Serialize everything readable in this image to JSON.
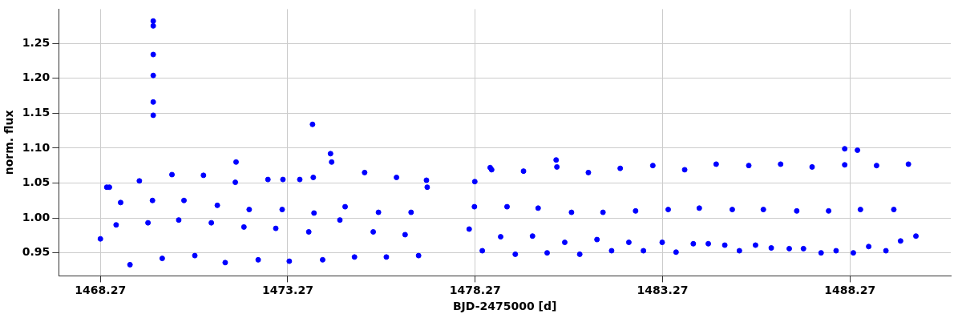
{
  "chart_data": {
    "type": "scatter",
    "xlabel": "BJD-2475000 [d]",
    "ylabel": "norm. flux",
    "marker": "circle",
    "grid": true,
    "xlim": [
      1467.16,
      1490.96
    ],
    "ylim": [
      0.917,
      1.299
    ],
    "xticks": [
      1468.27,
      1473.27,
      1478.27,
      1483.27,
      1488.27
    ],
    "yticks": [
      0.95,
      {
        "value": 1.0,
        "label": "1.00"
      },
      1.05,
      {
        "value": 1.1,
        "label": "1.10"
      },
      1.15,
      {
        "value": 1.2,
        "label": "1.20"
      },
      1.25
    ],
    "series": [
      {
        "color": "#0000ff",
        "x": [
          1468.27,
          1468.44,
          1468.51,
          1468.69,
          1468.81,
          1469.06,
          1469.31,
          1469.54,
          1469.66,
          1469.68,
          1469.68,
          1469.68,
          1469.68,
          1469.68,
          1469.68,
          1469.92,
          1470.18,
          1470.36,
          1470.5,
          1470.79,
          1471.02,
          1471.23,
          1471.39,
          1471.6,
          1471.87,
          1471.89,
          1472.1,
          1472.24,
          1472.48,
          1472.74,
          1472.95,
          1473.12,
          1473.14,
          1473.31,
          1473.59,
          1473.83,
          1473.93,
          1473.95,
          1473.97,
          1474.2,
          1474.41,
          1474.44,
          1474.66,
          1474.8,
          1475.05,
          1475.32,
          1475.55,
          1475.69,
          1475.9,
          1476.17,
          1476.4,
          1476.56,
          1476.76,
          1476.97,
          1476.99,
          1478.11,
          1478.25,
          1478.26,
          1478.46,
          1478.67,
          1478.71,
          1478.95,
          1479.12,
          1479.34,
          1479.56,
          1479.8,
          1479.95,
          1480.19,
          1480.43,
          1480.45,
          1480.66,
          1480.84,
          1481.06,
          1481.29,
          1481.52,
          1481.68,
          1481.91,
          1482.14,
          1482.37,
          1482.55,
          1482.76,
          1483.01,
          1483.26,
          1483.42,
          1483.63,
          1483.86,
          1484.09,
          1484.25,
          1484.49,
          1484.7,
          1484.93,
          1485.13,
          1485.32,
          1485.57,
          1485.75,
          1485.96,
          1486.17,
          1486.42,
          1486.65,
          1486.85,
          1487.03,
          1487.26,
          1487.5,
          1487.7,
          1487.9,
          1488.13,
          1488.13,
          1488.36,
          1488.47,
          1488.55,
          1488.77,
          1488.98,
          1489.23,
          1489.44,
          1489.62,
          1489.83,
          1490.03
        ],
        "values": [
          0.97,
          1.044,
          1.044,
          0.99,
          1.022,
          0.933,
          1.053,
          0.993,
          1.025,
          1.282,
          1.275,
          1.234,
          1.204,
          1.166,
          1.147,
          0.942,
          1.062,
          0.997,
          1.025,
          0.946,
          1.061,
          0.993,
          1.018,
          0.936,
          1.051,
          1.08,
          0.987,
          1.012,
          0.94,
          1.055,
          0.985,
          1.012,
          1.055,
          0.938,
          1.055,
          0.98,
          1.134,
          1.058,
          1.007,
          0.94,
          1.092,
          1.08,
          0.997,
          1.016,
          0.944,
          1.065,
          0.98,
          1.008,
          0.944,
          1.058,
          0.976,
          1.008,
          0.946,
          1.054,
          1.044,
          0.984,
          1.016,
          1.052,
          0.953,
          1.072,
          1.069,
          0.973,
          1.016,
          0.948,
          1.067,
          0.974,
          1.014,
          0.95,
          1.083,
          1.073,
          0.965,
          1.008,
          0.948,
          1.065,
          0.969,
          1.008,
          0.953,
          1.071,
          0.965,
          1.01,
          0.953,
          1.075,
          0.965,
          1.012,
          0.951,
          1.069,
          0.963,
          1.014,
          0.963,
          1.077,
          0.961,
          1.012,
          0.953,
          1.075,
          0.961,
          1.012,
          0.957,
          1.077,
          0.956,
          1.01,
          0.956,
          1.073,
          0.95,
          1.01,
          0.953,
          1.076,
          1.099,
          0.95,
          1.097,
          1.012,
          0.959,
          1.075,
          0.953,
          1.012,
          0.967,
          1.077,
          0.974
        ]
      }
    ]
  }
}
